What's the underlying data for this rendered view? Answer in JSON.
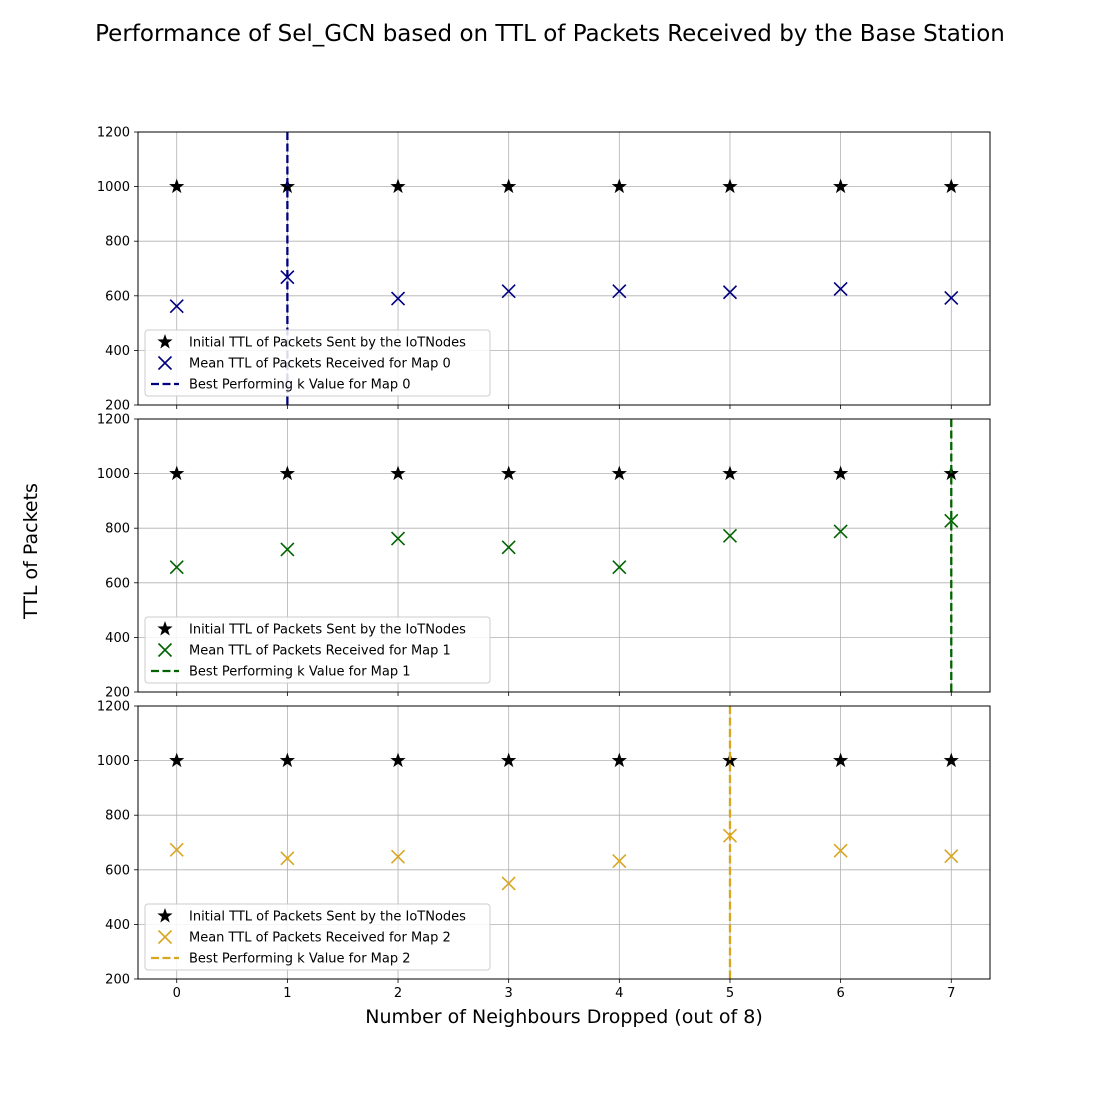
{
  "figure": {
    "title": "Performance of Sel_GCN based on TTL of Packets Received by the Base Station",
    "xlabel": "Number of Neighbours Dropped (out of 8)",
    "ylabel": "TTL of Packets"
  },
  "chart_data": [
    {
      "type": "scatter",
      "x": [
        0,
        1,
        2,
        3,
        4,
        5,
        6,
        7
      ],
      "xlim": [
        -0.35,
        7.35
      ],
      "ylim": [
        200,
        1200
      ],
      "yticks": [
        200,
        400,
        600,
        800,
        1000,
        1200
      ],
      "grid": true,
      "legend_position": "lower-left",
      "series": [
        {
          "name": "Initial TTL of Packets Sent by the IoTNodes",
          "marker": "star",
          "color": "#000000",
          "values": [
            1000,
            1000,
            1000,
            1000,
            1000,
            1000,
            1000,
            1000
          ]
        },
        {
          "name": "Mean TTL of Packets Received for Map 0",
          "marker": "x",
          "color": "#000080",
          "values": [
            562,
            668,
            590,
            617,
            617,
            613,
            625,
            592
          ]
        }
      ],
      "best_k": {
        "name": "Best Performing k Value for Map 0",
        "value": 1,
        "color": "#000080"
      }
    },
    {
      "type": "scatter",
      "x": [
        0,
        1,
        2,
        3,
        4,
        5,
        6,
        7
      ],
      "xlim": [
        -0.35,
        7.35
      ],
      "ylim": [
        200,
        1200
      ],
      "yticks": [
        200,
        400,
        600,
        800,
        1000,
        1200
      ],
      "grid": true,
      "legend_position": "lower-left",
      "series": [
        {
          "name": "Initial TTL of Packets Sent by the IoTNodes",
          "marker": "star",
          "color": "#000000",
          "values": [
            1000,
            1000,
            1000,
            1000,
            1000,
            1000,
            1000,
            1000
          ]
        },
        {
          "name": "Mean TTL of Packets Received for Map 1",
          "marker": "x",
          "color": "#006400",
          "values": [
            657,
            722,
            762,
            730,
            657,
            772,
            788,
            827
          ]
        }
      ],
      "best_k": {
        "name": "Best Performing k Value for Map 1",
        "value": 7,
        "color": "#006400"
      }
    },
    {
      "type": "scatter",
      "x": [
        0,
        1,
        2,
        3,
        4,
        5,
        6,
        7
      ],
      "xlim": [
        -0.35,
        7.35
      ],
      "ylim": [
        200,
        1200
      ],
      "yticks": [
        200,
        400,
        600,
        800,
        1000,
        1200
      ],
      "grid": true,
      "legend_position": "lower-left",
      "series": [
        {
          "name": "Initial TTL of Packets Sent by the IoTNodes",
          "marker": "star",
          "color": "#000000",
          "values": [
            1000,
            1000,
            1000,
            1000,
            1000,
            1000,
            1000,
            1000
          ]
        },
        {
          "name": "Mean TTL of Packets Received for Map 2",
          "marker": "x",
          "color": "#DAA520",
          "values": [
            673,
            642,
            648,
            550,
            632,
            725,
            670,
            650
          ]
        }
      ],
      "best_k": {
        "name": "Best Performing k Value for Map 2",
        "value": 5,
        "color": "#DAA520"
      }
    }
  ]
}
